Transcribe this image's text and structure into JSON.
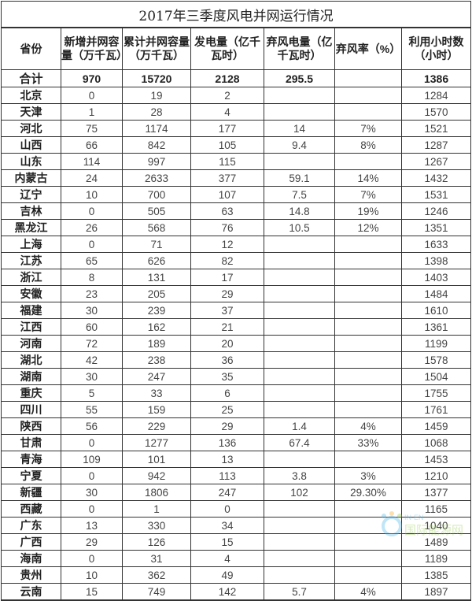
{
  "title": "2017年三季度风电并网运行情况",
  "headers": [
    "省份",
    "新增并网容量（万千瓦）",
    "累计并网容量（万千瓦）",
    "发电量（亿千瓦时）",
    "弃风电量（亿千瓦时）",
    "弃风率（%）",
    "利用小时数（小时）"
  ],
  "total": [
    "合计",
    "970",
    "15720",
    "2128",
    "295.5",
    "",
    "1386"
  ],
  "rows": [
    [
      "北京",
      "0",
      "19",
      "2",
      "",
      "",
      "1284"
    ],
    [
      "天津",
      "1",
      "28",
      "4",
      "",
      "",
      "1570"
    ],
    [
      "河北",
      "75",
      "1174",
      "177",
      "14",
      "7%",
      "1521"
    ],
    [
      "山西",
      "66",
      "842",
      "105",
      "9.4",
      "8%",
      "1287"
    ],
    [
      "山东",
      "114",
      "997",
      "115",
      "",
      "",
      "1267"
    ],
    [
      "内蒙古",
      "24",
      "2633",
      "377",
      "59.1",
      "14%",
      "1432"
    ],
    [
      "辽宁",
      "10",
      "700",
      "107",
      "7.5",
      "7%",
      "1531"
    ],
    [
      "吉林",
      "0",
      "505",
      "63",
      "14.8",
      "19%",
      "1246"
    ],
    [
      "黑龙江",
      "26",
      "568",
      "76",
      "10.5",
      "12%",
      "1351"
    ],
    [
      "上海",
      "0",
      "71",
      "12",
      "",
      "",
      "1633"
    ],
    [
      "江苏",
      "65",
      "626",
      "82",
      "",
      "",
      "1398"
    ],
    [
      "浙江",
      "8",
      "131",
      "17",
      "",
      "",
      "1403"
    ],
    [
      "安徽",
      "23",
      "205",
      "29",
      "",
      "",
      "1484"
    ],
    [
      "福建",
      "30",
      "239",
      "37",
      "",
      "",
      "1610"
    ],
    [
      "江西",
      "60",
      "162",
      "21",
      "",
      "",
      "1361"
    ],
    [
      "河南",
      "72",
      "189",
      "20",
      "",
      "",
      "1199"
    ],
    [
      "湖北",
      "42",
      "238",
      "36",
      "",
      "",
      "1578"
    ],
    [
      "湖南",
      "30",
      "247",
      "35",
      "",
      "",
      "1504"
    ],
    [
      "重庆",
      "5",
      "33",
      "6",
      "",
      "",
      "1755"
    ],
    [
      "四川",
      "55",
      "159",
      "25",
      "",
      "",
      "1761"
    ],
    [
      "陕西",
      "56",
      "229",
      "29",
      "1.4",
      "4%",
      "1459"
    ],
    [
      "甘肃",
      "0",
      "1277",
      "136",
      "67.4",
      "33%",
      "1068"
    ],
    [
      "青海",
      "109",
      "101",
      "13",
      "",
      "",
      "1453"
    ],
    [
      "宁夏",
      "0",
      "942",
      "113",
      "3.8",
      "3%",
      "1210"
    ],
    [
      "新疆",
      "30",
      "1806",
      "247",
      "102",
      "29.30%",
      "1377"
    ],
    [
      "西藏",
      "0",
      "1",
      "0",
      "",
      "",
      "1165"
    ],
    [
      "广东",
      "13",
      "330",
      "34",
      "",
      "",
      "1040"
    ],
    [
      "广西",
      "29",
      "126",
      "15",
      "",
      "",
      "1489"
    ],
    [
      "海南",
      "0",
      "31",
      "4",
      "",
      "",
      "1189"
    ],
    [
      "贵州",
      "10",
      "362",
      "49",
      "",
      "",
      "1385"
    ],
    [
      "云南",
      "15",
      "749",
      "142",
      "5.7",
      "4%",
      "1897"
    ]
  ],
  "watermark": {
    "text": "IN-EN 国际能源网",
    "colors": [
      "#4db6e8",
      "#8cc63f",
      "#f5a623"
    ]
  }
}
